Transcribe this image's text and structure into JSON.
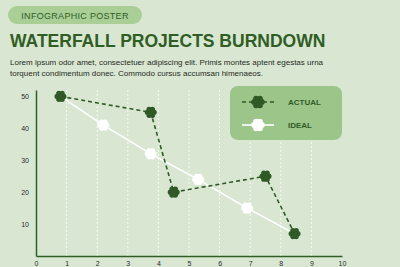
{
  "chart_data": {
    "type": "line",
    "title": "WATERFALL PROJECTS BURNDOWN",
    "subtitle": "Lorem ipsum odor amet, consectetuer adipiscing elit. Primis montes aptent egestas urna torquent condimentum donec. Commodo cursus accumsan himenaeos.",
    "annotations": [
      "INFOGRAPHIC POSTER"
    ],
    "xlim": [
      0,
      10
    ],
    "xticks": [
      0,
      1,
      2,
      3,
      4,
      5,
      6,
      7,
      8,
      9,
      10
    ],
    "ylim": [
      0,
      52
    ],
    "yticks": [
      10,
      20,
      30,
      40,
      50
    ],
    "grid": true,
    "legend": "upper right",
    "series": [
      {
        "name": "ACTUAL",
        "color": "#2f5a26",
        "marker": "flower",
        "line_style": "dashed",
        "x": [
          0.8,
          3.75,
          4.5,
          7.5,
          8.45
        ],
        "values": [
          50,
          45,
          20,
          25,
          7
        ]
      },
      {
        "name": "IDEAL",
        "color": "#ffffff",
        "marker": "flower",
        "line_style": "solid",
        "x": [
          0.8,
          2.2,
          3.75,
          5.3,
          6.9,
          8.45
        ],
        "values": [
          50,
          41,
          32,
          24,
          15,
          7
        ]
      }
    ]
  }
}
